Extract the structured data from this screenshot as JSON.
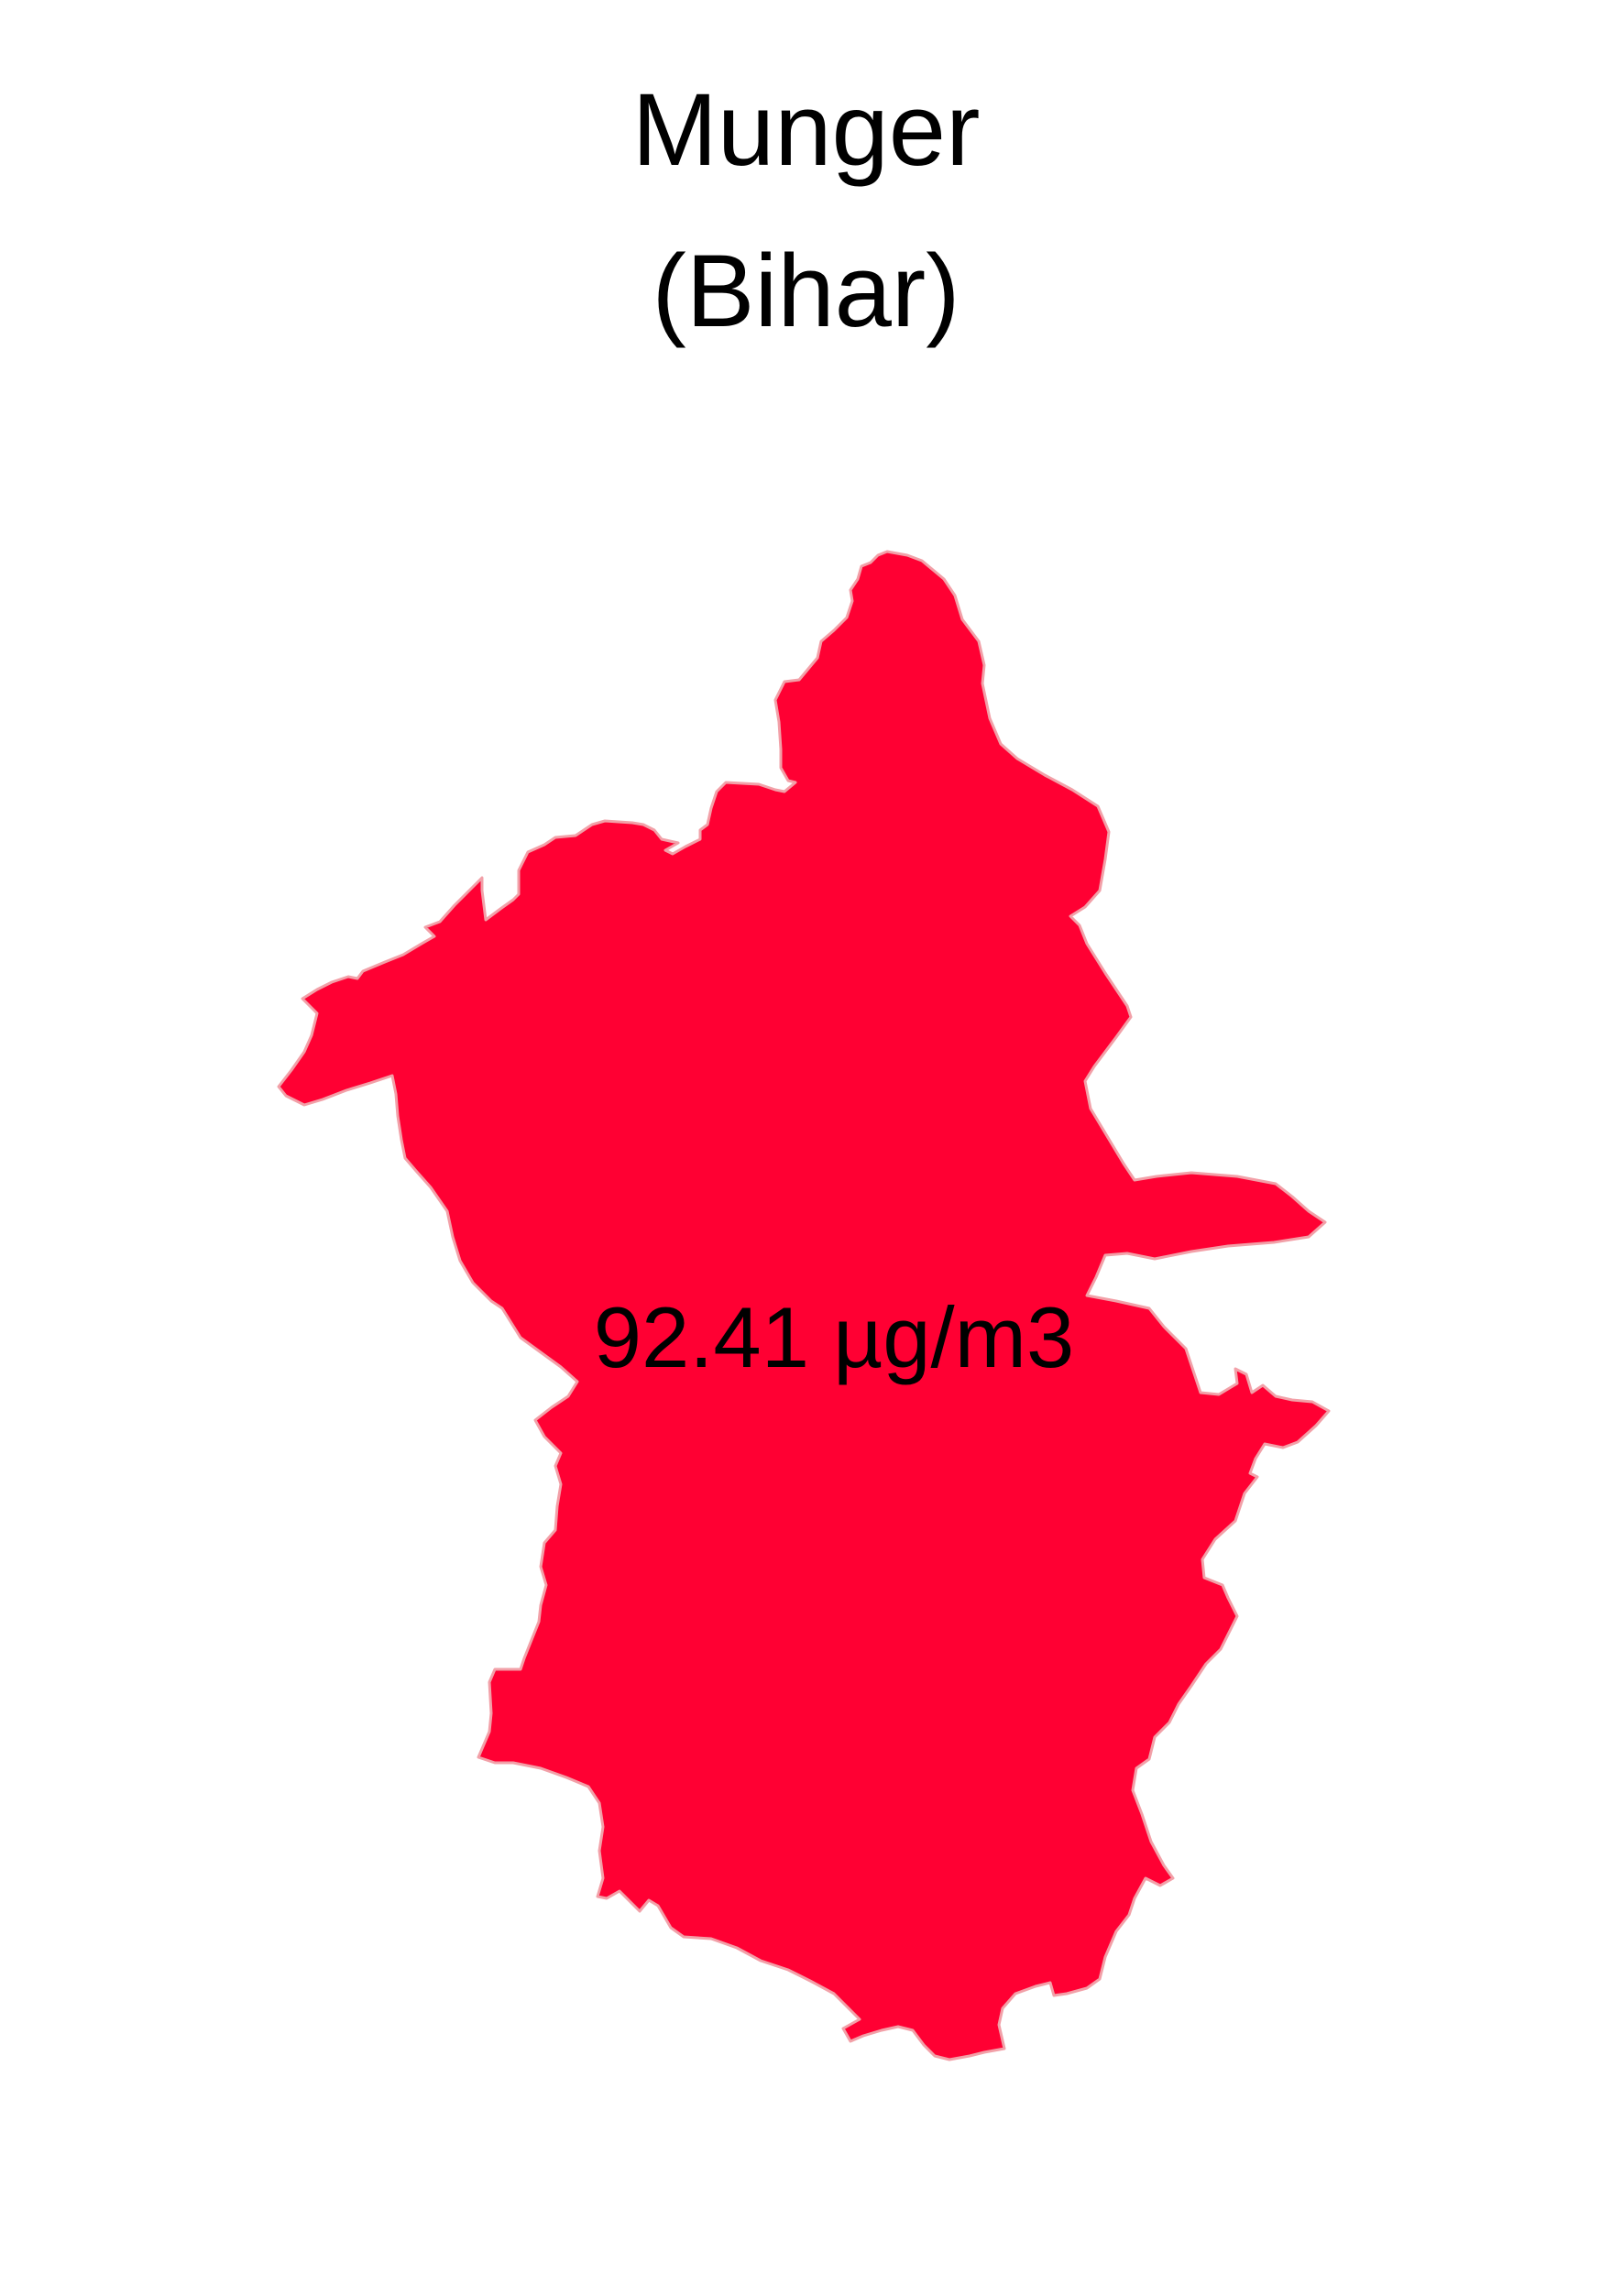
{
  "map": {
    "title_line1": "Munger",
    "title_line2": "(Bihar)",
    "region_name": "Munger",
    "state_name": "Bihar",
    "value": 92.41,
    "value_label": "92.41 µg/m3",
    "unit": "µg/m3",
    "fill_color": "#ff0033",
    "outline_color": "#f2a0a8",
    "background_color": "#ffffff"
  }
}
